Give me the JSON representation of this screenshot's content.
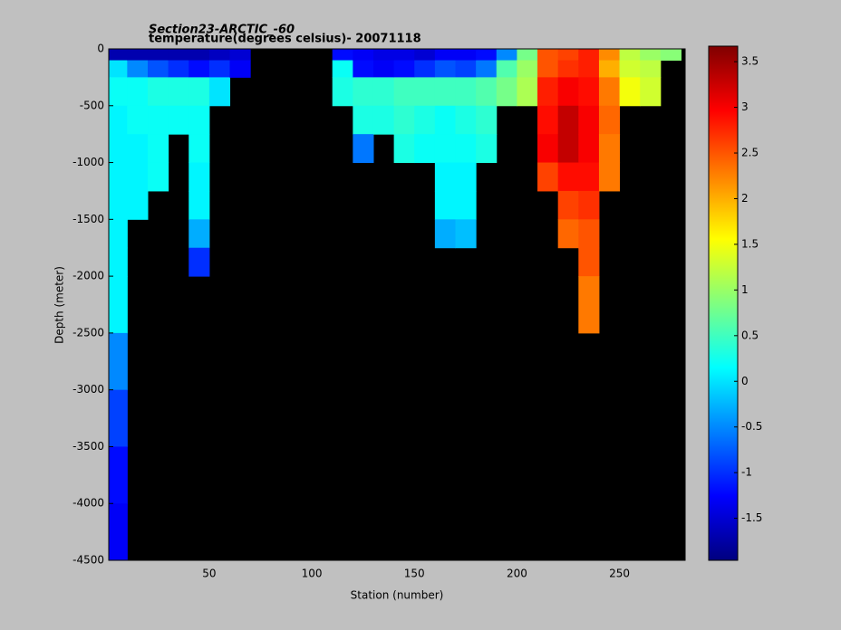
{
  "chart_data": {
    "type": "heatmap",
    "title": "Section23-ARCTIC_-60",
    "subtitle": "temperature(degrees celsius)- 20071118",
    "x_label": "Station (number)",
    "y_label": "Depth (meter)",
    "colormap": "jet",
    "background": "#000000",
    "xlim": [
      1,
      282
    ],
    "ylim": [
      -4500,
      0
    ],
    "clim": [
      -1.96,
      3.67
    ],
    "xticks": [
      50,
      100,
      150,
      200,
      250
    ],
    "yticks": [
      0,
      -500,
      -1000,
      -1500,
      -2000,
      -2500,
      -3000,
      -3500,
      -4000,
      -4500
    ],
    "cticks": [
      -1.5,
      -1,
      -0.5,
      0,
      0.5,
      1,
      1.5,
      2,
      2.5,
      3,
      3.5
    ],
    "x_edges": [
      1,
      10,
      20,
      30,
      40,
      50,
      60,
      70,
      80,
      90,
      100,
      110,
      120,
      130,
      140,
      150,
      160,
      170,
      180,
      190,
      200,
      210,
      220,
      230,
      240,
      250,
      260,
      270,
      280
    ],
    "y_edges": [
      0,
      -100,
      -250,
      -500,
      -750,
      -1000,
      -1250,
      -1500,
      -1750,
      -2000,
      -2500,
      -3000,
      -3500,
      -4000,
      -4500
    ],
    "z": [
      [
        -1.7,
        0,
        0.2,
        0.1,
        0.1,
        0.1,
        0.1,
        0.1,
        0.1,
        0.1,
        -0.5,
        -0.9,
        -1.2,
        -1.3
      ],
      [
        -1.7,
        -0.5,
        0.2,
        0.2,
        0.1,
        0.1,
        0.1,
        null,
        null,
        null,
        null,
        null,
        null,
        null
      ],
      [
        -1.7,
        -0.8,
        0.3,
        0.2,
        0.2,
        0.2,
        null,
        null,
        null,
        null,
        null,
        null,
        null,
        null
      ],
      [
        -1.7,
        -1.0,
        0.3,
        0.2,
        null,
        null,
        null,
        null,
        null,
        null,
        null,
        null,
        null,
        null
      ],
      [
        -1.7,
        -1.2,
        0.3,
        0.2,
        0.2,
        0.1,
        0.1,
        -0.3,
        -1.0,
        null,
        null,
        null,
        null,
        null
      ],
      [
        -1.6,
        -1.0,
        0,
        null,
        null,
        null,
        null,
        null,
        null,
        null,
        null,
        null,
        null,
        null
      ],
      [
        -1.5,
        -1.3,
        null,
        null,
        null,
        null,
        null,
        null,
        null,
        null,
        null,
        null,
        null,
        null
      ],
      [
        null,
        null,
        null,
        null,
        null,
        null,
        null,
        null,
        null,
        null,
        null,
        null,
        null,
        null
      ],
      [
        null,
        null,
        null,
        null,
        null,
        null,
        null,
        null,
        null,
        null,
        null,
        null,
        null,
        null
      ],
      [
        null,
        null,
        null,
        null,
        null,
        null,
        null,
        null,
        null,
        null,
        null,
        null,
        null,
        null
      ],
      [
        null,
        null,
        null,
        null,
        null,
        null,
        null,
        null,
        null,
        null,
        null,
        null,
        null,
        null
      ],
      [
        -1.2,
        0.2,
        0.3,
        null,
        null,
        null,
        null,
        null,
        null,
        null,
        null,
        null,
        null,
        null
      ],
      [
        -1.3,
        -1.2,
        0.4,
        0.3,
        -0.6,
        null,
        null,
        null,
        null,
        null,
        null,
        null,
        null,
        null
      ],
      [
        -1.4,
        -1.3,
        0.4,
        0.3,
        null,
        null,
        null,
        null,
        null,
        null,
        null,
        null,
        null,
        null
      ],
      [
        -1.4,
        -1.2,
        0.5,
        0.4,
        0.3,
        null,
        null,
        null,
        null,
        null,
        null,
        null,
        null,
        null
      ],
      [
        -1.5,
        -1.0,
        0.5,
        0.3,
        0.2,
        null,
        null,
        null,
        null,
        null,
        null,
        null,
        null,
        null
      ],
      [
        -1.3,
        -0.8,
        0.5,
        0.2,
        0.2,
        0.1,
        0.1,
        -0.3,
        null,
        null,
        null,
        null,
        null,
        null
      ],
      [
        -1.3,
        -0.9,
        0.5,
        0.3,
        0.2,
        0.1,
        0.1,
        -0.2,
        null,
        null,
        null,
        null,
        null,
        null
      ],
      [
        -1.2,
        -0.6,
        0.6,
        0.4,
        0.3,
        null,
        null,
        null,
        null,
        null,
        null,
        null,
        null,
        null
      ],
      [
        -0.5,
        0.6,
        0.8,
        null,
        null,
        null,
        null,
        null,
        null,
        null,
        null,
        null,
        null,
        null
      ],
      [
        0.8,
        1.0,
        1.1,
        null,
        null,
        null,
        null,
        null,
        null,
        null,
        null,
        null,
        null,
        null
      ],
      [
        2.5,
        2.5,
        2.8,
        2.9,
        3.0,
        2.6,
        null,
        null,
        null,
        null,
        null,
        null,
        null,
        null
      ],
      [
        2.6,
        2.7,
        3.0,
        3.3,
        3.3,
        2.9,
        2.6,
        2.4,
        null,
        null,
        null,
        null,
        null,
        null
      ],
      [
        2.8,
        2.8,
        2.9,
        3.0,
        3.0,
        2.9,
        2.7,
        2.5,
        2.5,
        2.3,
        null,
        null,
        null,
        null
      ],
      [
        2.2,
        2.0,
        2.3,
        2.4,
        2.3,
        2.3,
        null,
        null,
        null,
        null,
        null,
        null,
        null,
        null
      ],
      [
        1.2,
        1.3,
        1.5,
        null,
        null,
        null,
        null,
        null,
        null,
        null,
        null,
        null,
        null,
        null
      ],
      [
        1.0,
        1.2,
        1.3,
        null,
        null,
        null,
        null,
        null,
        null,
        null,
        null,
        null,
        null,
        null
      ],
      [
        0.9,
        null,
        null,
        null,
        null,
        null,
        null,
        null,
        null,
        null,
        null,
        null,
        null,
        null
      ]
    ]
  }
}
